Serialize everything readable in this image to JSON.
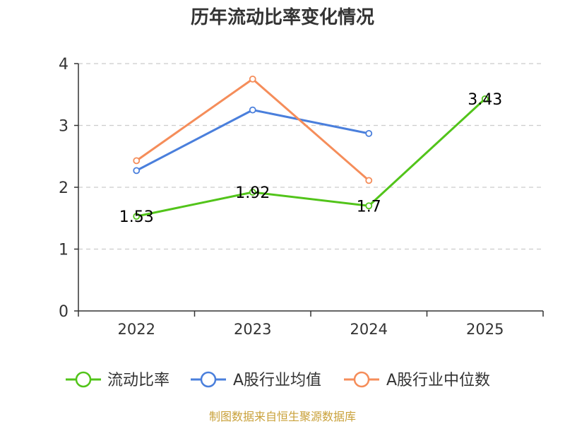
{
  "chart_data": {
    "type": "line",
    "title": "历年流动比率变化情况",
    "categories": [
      "2022",
      "2023",
      "2024",
      "2025"
    ],
    "yticks": [
      "0",
      "1",
      "2",
      "3",
      "4"
    ],
    "ylim": [
      0,
      4
    ],
    "grid": true,
    "legend_position": "bottom",
    "series": [
      {
        "name": "流动比率",
        "color": "#52c41a",
        "values": [
          1.53,
          1.92,
          1.7,
          3.43
        ],
        "labels": [
          "1.53",
          "1.92",
          "1.7",
          "3.43"
        ]
      },
      {
        "name": "A股行业均值",
        "color": "#4a7fdc",
        "values": [
          2.27,
          3.25,
          2.87,
          null
        ]
      },
      {
        "name": "A股行业中位数",
        "color": "#f58d5a",
        "values": [
          2.43,
          3.75,
          2.11,
          null
        ]
      }
    ],
    "source": "制图数据来自恒生聚源数据库"
  }
}
